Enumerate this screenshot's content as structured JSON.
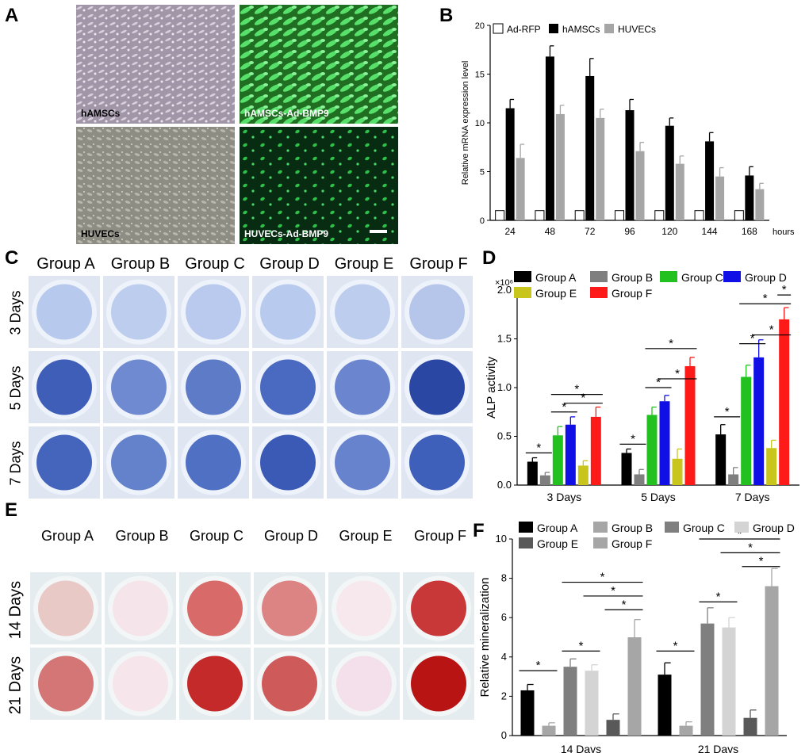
{
  "panels": {
    "a": "A",
    "b": "B",
    "c": "C",
    "d": "D",
    "e": "E",
    "f": "F"
  },
  "micrographs": [
    {
      "label": "hAMSCs",
      "style": "phase"
    },
    {
      "label": "hAMSCs-Ad-BMP9",
      "style": "fluor-bright"
    },
    {
      "label": "HUVECs",
      "style": "phase2"
    },
    {
      "label": "HUVECs-Ad-BMP9",
      "style": "fluor-dim"
    }
  ],
  "alp_stain": {
    "columns": [
      "Group A",
      "Group B",
      "Group C",
      "Group D",
      "Group E",
      "Group F"
    ],
    "rows": [
      "3 Days",
      "5 Days",
      "7 Days"
    ]
  },
  "ars_stain": {
    "columns": [
      "Group A",
      "Group B",
      "Group C",
      "Group D",
      "Group E",
      "Group F"
    ],
    "rows": [
      "14 Days",
      "21 Days"
    ]
  },
  "chart_data": [
    {
      "id": "B",
      "type": "bar",
      "ylabel": "Relative mRNA expression level",
      "xunit": "hours",
      "ylim": [
        0,
        20
      ],
      "yticks": [
        "0",
        "5",
        "10",
        "15",
        "20"
      ],
      "categories": [
        "24",
        "48",
        "72",
        "96",
        "120",
        "144",
        "168"
      ],
      "legend": "top-left",
      "series": [
        {
          "name": "Ad-RFP",
          "color": "#ffffff",
          "values": [
            1,
            1,
            1,
            1,
            1,
            1,
            1
          ],
          "errors": [
            0,
            0,
            0,
            0,
            0,
            0,
            0
          ]
        },
        {
          "name": "hAMSCs",
          "color": "#000000",
          "values": [
            11.5,
            16.8,
            14.8,
            11.3,
            9.7,
            8.1,
            4.6
          ],
          "errors": [
            0.9,
            1.1,
            1.8,
            1.1,
            0.8,
            0.9,
            0.9
          ]
        },
        {
          "name": "HUVECs",
          "color": "#a6a6a6",
          "values": [
            6.4,
            10.9,
            10.5,
            7.1,
            5.8,
            4.5,
            3.2
          ],
          "errors": [
            1.4,
            0.9,
            0.9,
            0.9,
            0.8,
            0.9,
            0.6
          ]
        }
      ]
    },
    {
      "id": "D",
      "type": "bar",
      "ylabel": "ALP activity",
      "yscale_label": "×10⁶",
      "ylim": [
        0,
        2.0
      ],
      "yticks": [
        "0.0",
        "0.5",
        "1.0",
        "1.5",
        "2.0"
      ],
      "categories": [
        "3 Days",
        "5 Days",
        "7 Days"
      ],
      "legend": "top",
      "series": [
        {
          "name": "Group A",
          "color": "#000000",
          "values": [
            0.24,
            0.33,
            0.52
          ],
          "errors": [
            0.04,
            0.04,
            0.1
          ]
        },
        {
          "name": "Group B",
          "color": "#7f7f7f",
          "values": [
            0.1,
            0.11,
            0.11
          ],
          "errors": [
            0.03,
            0.05,
            0.07
          ]
        },
        {
          "name": "Group C",
          "color": "#22c11f",
          "values": [
            0.51,
            0.72,
            1.11
          ],
          "errors": [
            0.09,
            0.08,
            0.12
          ]
        },
        {
          "name": "Group D",
          "color": "#1010e6",
          "values": [
            0.62,
            0.86,
            1.31
          ],
          "errors": [
            0.08,
            0.06,
            0.18
          ]
        },
        {
          "name": "Group E",
          "color": "#c8c51c",
          "values": [
            0.2,
            0.27,
            0.38
          ],
          "errors": [
            0.05,
            0.1,
            0.08
          ]
        },
        {
          "name": "Group F",
          "color": "#ff1a1a",
          "values": [
            0.7,
            1.22,
            1.7
          ],
          "errors": [
            0.1,
            0.09,
            0.12
          ]
        }
      ],
      "significance": [
        {
          "group": 0,
          "from": 0,
          "to": 1,
          "level": 0.33,
          "label": "*"
        },
        {
          "group": 0,
          "from": 2,
          "to": 3,
          "level": 0.75,
          "label": "*"
        },
        {
          "group": 0,
          "from": 3,
          "to": 5,
          "level": 0.84,
          "label": "*"
        },
        {
          "group": 0,
          "from": 2,
          "to": 5,
          "level": 0.93,
          "label": "*"
        },
        {
          "group": 1,
          "from": 0,
          "to": 1,
          "level": 0.42,
          "label": "*"
        },
        {
          "group": 1,
          "from": 2,
          "to": 3,
          "level": 1.0,
          "label": "*"
        },
        {
          "group": 1,
          "from": 3,
          "to": 5,
          "level": 1.09,
          "label": "*"
        },
        {
          "group": 1,
          "from": 2,
          "to": 5,
          "level": 1.4,
          "label": "*"
        },
        {
          "group": 2,
          "from": 0,
          "to": 1,
          "level": 0.7,
          "label": "*"
        },
        {
          "group": 2,
          "from": 2,
          "to": 3,
          "level": 1.45,
          "label": "*"
        },
        {
          "group": 2,
          "from": 3,
          "to": 5,
          "level": 1.54,
          "label": "*"
        },
        {
          "group": 2,
          "from": 2,
          "to": 5,
          "level": 1.86,
          "label": "*"
        },
        {
          "group": 2,
          "from": 5,
          "to": 5,
          "level": 1.95,
          "label": "*"
        }
      ]
    },
    {
      "id": "F",
      "type": "bar",
      "ylabel": "Relative mineralization",
      "ylim": [
        0,
        10
      ],
      "yticks": [
        "0",
        "2",
        "4",
        "6",
        "8",
        "10"
      ],
      "categories": [
        "14 Days",
        "21 Days"
      ],
      "legend": "top",
      "series": [
        {
          "name": "Group A",
          "color": "#000000",
          "values": [
            2.3,
            3.1
          ],
          "errors": [
            0.3,
            0.6
          ]
        },
        {
          "name": "Group B",
          "color": "#a6a6a6",
          "values": [
            0.5,
            0.5
          ],
          "errors": [
            0.15,
            0.2
          ]
        },
        {
          "name": "Group C",
          "color": "#7f7f7f",
          "values": [
            3.5,
            5.7
          ],
          "errors": [
            0.4,
            0.8
          ]
        },
        {
          "name": "Group D",
          "color": "#d4d4d4",
          "values": [
            3.3,
            5.5
          ],
          "errors": [
            0.3,
            0.5
          ]
        },
        {
          "name": "Group E",
          "color": "#595959",
          "values": [
            0.8,
            0.9
          ],
          "errors": [
            0.3,
            0.4
          ]
        },
        {
          "name": "Group F",
          "color": "#a6a6a6",
          "values": [
            5.0,
            7.6
          ],
          "errors": [
            0.9,
            0.9
          ]
        }
      ],
      "significance": [
        {
          "group": 0,
          "from": 0,
          "to": 1,
          "level": 3.3,
          "label": "*"
        },
        {
          "group": 0,
          "from": 2,
          "to": 3,
          "level": 4.3,
          "label": "*"
        },
        {
          "group": 0,
          "from": 4,
          "to": 5,
          "level": 6.4,
          "label": "*"
        },
        {
          "group": 0,
          "from": 3,
          "to": 5,
          "level": 7.1,
          "label": "*"
        },
        {
          "group": 0,
          "from": 2,
          "to": 5,
          "level": 7.8,
          "label": "*"
        },
        {
          "group": 1,
          "from": 0,
          "to": 1,
          "level": 4.3,
          "label": "*"
        },
        {
          "group": 1,
          "from": 2,
          "to": 3,
          "level": 6.8,
          "label": "*"
        },
        {
          "group": 1,
          "from": 4,
          "to": 5,
          "level": 8.6,
          "label": "*"
        },
        {
          "group": 1,
          "from": 3,
          "to": 5,
          "level": 9.3,
          "label": "*"
        },
        {
          "group": 1,
          "from": 2,
          "to": 5,
          "level": 10.0,
          "label": "*"
        }
      ]
    }
  ]
}
